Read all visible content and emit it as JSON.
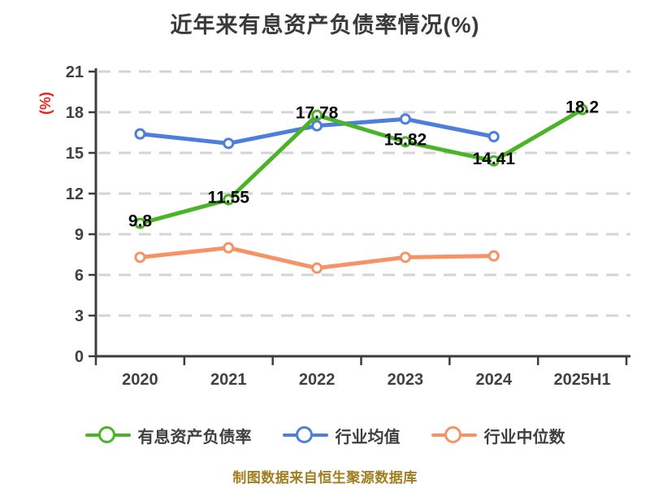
{
  "header": {
    "title": "近年来有息资产负债率情况(%)"
  },
  "footer": {
    "source_note": "制图数据来自恒生聚源数据库"
  },
  "colors": {
    "series_main": "#4bb424",
    "series_industry_avg": "#4d7edc",
    "series_industry_median": "#f79267",
    "axis": "#3c3c3c",
    "grid": "#d4d4d4",
    "title_text": "#3a3a3a",
    "tick_label": "#414141",
    "unit_label": "#e8261d",
    "data_label": "#0b0b0b",
    "marker_fill": "#ffffff",
    "legend_text": "#3f3f3f",
    "footer_text": "#a07d1e"
  },
  "chart_data": {
    "type": "line",
    "title": "近年来有息资产负债率情况(%)",
    "categories": [
      "2020",
      "2021",
      "2022",
      "2023",
      "2024",
      "2025H1"
    ],
    "series": [
      {
        "name": "有息资产负债率",
        "color": "#4bb424",
        "values": [
          9.8,
          11.55,
          17.78,
          15.82,
          14.41,
          18.2
        ],
        "point_labels": [
          "9.8",
          "11.55",
          "17.78",
          "15.82",
          "14.41",
          "18.2"
        ]
      },
      {
        "name": "行业均值",
        "color": "#4d7edc",
        "values": [
          16.4,
          15.7,
          17.0,
          17.5,
          16.2,
          null
        ],
        "point_labels": null
      },
      {
        "name": "行业中位数",
        "color": "#f79267",
        "values": [
          7.3,
          8.0,
          6.5,
          7.3,
          7.4,
          null
        ],
        "point_labels": null
      }
    ],
    "xlabel": "",
    "ylabel": "(%)",
    "ylim": [
      0,
      21
    ],
    "yticks": [
      0,
      3,
      6,
      9,
      12,
      15,
      18,
      21
    ],
    "grid": "horizontal-dashed",
    "legend_position": "bottom"
  }
}
